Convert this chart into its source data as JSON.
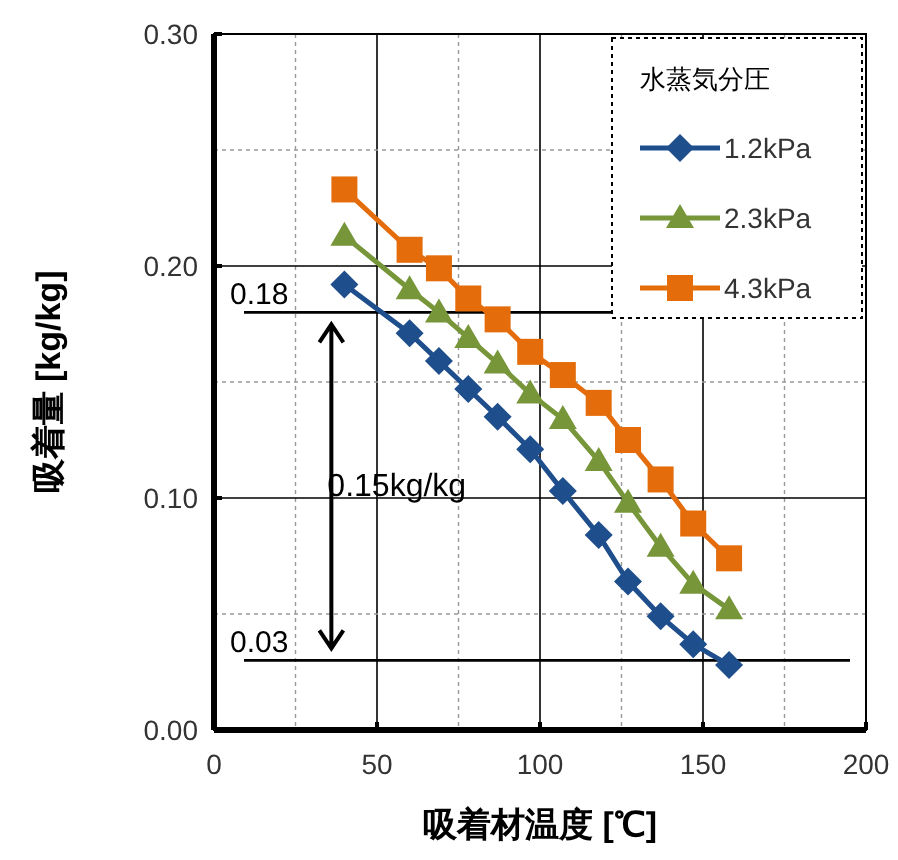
{
  "chart_data": {
    "type": "line",
    "xlabel": "吸着材温度 [℃]",
    "ylabel": "吸着量 [kg/kg]",
    "legend_title": "水蒸気分圧",
    "xlim": [
      0,
      200
    ],
    "xticks": [
      0,
      50,
      100,
      150,
      200
    ],
    "ylim": [
      0,
      0.3
    ],
    "yticks": [
      {
        "value": 0,
        "label": "0.00"
      },
      {
        "value": 0.1,
        "label": "0.10"
      },
      {
        "value": 0.2,
        "label": "0.20"
      },
      {
        "value": 0.3,
        "label": "0.30"
      }
    ],
    "grid": true,
    "legend": "top right",
    "series": [
      {
        "name": "1.2kPa",
        "color": "#1f4e8c",
        "marker": "diamond",
        "x": [
          40,
          60,
          69,
          78,
          87,
          97,
          107,
          118,
          127,
          137,
          147,
          158
        ],
        "values": [
          0.192,
          0.171,
          0.159,
          0.147,
          0.135,
          0.121,
          0.103,
          0.084,
          0.064,
          0.049,
          0.037,
          0.028
        ]
      },
      {
        "name": "2.3kPa",
        "color": "#77963a",
        "marker": "triangle",
        "x": [
          40,
          60,
          69,
          78,
          87,
          97,
          107,
          118,
          127,
          137,
          147,
          158
        ],
        "values": [
          0.213,
          0.19,
          0.18,
          0.169,
          0.158,
          0.145,
          0.134,
          0.116,
          0.098,
          0.079,
          0.063,
          0.052
        ]
      },
      {
        "name": "4.3kPa",
        "color": "#e46c0a",
        "marker": "square",
        "x": [
          40,
          60,
          69,
          78,
          87,
          97,
          107,
          118,
          127,
          137,
          147,
          158
        ],
        "values": [
          0.233,
          0.207,
          0.199,
          0.186,
          0.177,
          0.163,
          0.153,
          0.141,
          0.125,
          0.108,
          0.089,
          0.074
        ]
      }
    ],
    "ref_lines": [
      {
        "axis": "y",
        "value": 0.18,
        "label": "0.18",
        "color": "#000000"
      },
      {
        "axis": "y",
        "value": 0.03,
        "label": "0.03",
        "color": "#000000"
      }
    ],
    "annotations": [
      "0.15kg/kg"
    ]
  }
}
